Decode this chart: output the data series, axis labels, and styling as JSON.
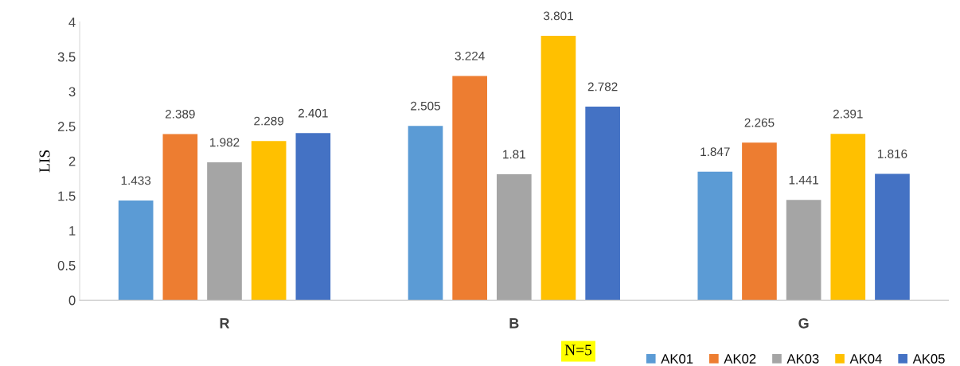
{
  "chart_data": {
    "type": "bar",
    "ylabel": "LIS",
    "categories": [
      "R",
      "B",
      "G"
    ],
    "series": [
      {
        "name": "AK01",
        "color": "#5b9bd5",
        "values": [
          1.433,
          2.505,
          1.847
        ]
      },
      {
        "name": "AK02",
        "color": "#ed7d31",
        "values": [
          2.389,
          3.224,
          2.265
        ]
      },
      {
        "name": "AK03",
        "color": "#a5a5a5",
        "values": [
          1.982,
          1.81,
          1.441
        ]
      },
      {
        "name": "AK04",
        "color": "#ffc000",
        "values": [
          2.289,
          3.801,
          2.391
        ]
      },
      {
        "name": "AK05",
        "color": "#4472c4",
        "values": [
          2.401,
          2.782,
          1.816
        ]
      }
    ],
    "ylim": [
      0,
      4
    ],
    "yticks": [
      0,
      0.5,
      1,
      1.5,
      2,
      2.5,
      3,
      3.5,
      4
    ],
    "data_labels": true,
    "grid": false,
    "legend": "bottom right",
    "annotations": [
      "N=5"
    ]
  }
}
